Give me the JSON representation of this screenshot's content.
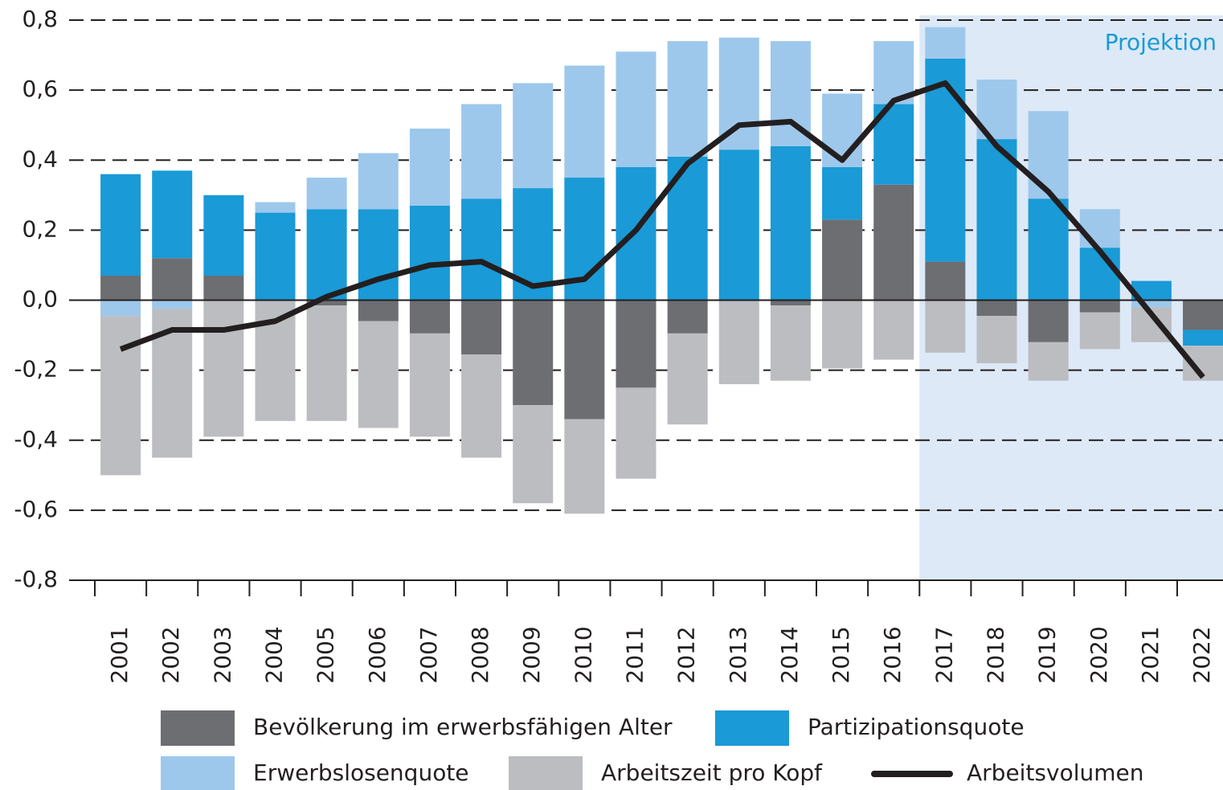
{
  "chart_data": {
    "type": "bar",
    "categories": [
      "2001",
      "2002",
      "2003",
      "2004",
      "2005",
      "2006",
      "2007",
      "2008",
      "2009",
      "2010",
      "2011",
      "2012",
      "2013",
      "2014",
      "2015",
      "2016",
      "2017",
      "2018",
      "2019",
      "2020",
      "2021",
      "2022"
    ],
    "series": [
      {
        "name": "Bevölkerung im erwerbsfähigen Alter",
        "color": "#6d6e71",
        "values": [
          0.07,
          0.12,
          0.07,
          0,
          -0.015,
          -0.06,
          -0.095,
          -0.155,
          -0.3,
          -0.34,
          -0.25,
          -0.095,
          0,
          -0.015,
          0.23,
          0.33,
          0.11,
          -0.045,
          -0.12,
          -0.035,
          0,
          -0.085
        ]
      },
      {
        "name": "Partizipationsquote",
        "color": "#1a9ad6",
        "values": [
          0.29,
          0.25,
          0.23,
          0.25,
          0.26,
          0.26,
          0.27,
          0.29,
          0.32,
          0.35,
          0.38,
          0.41,
          0.43,
          0.44,
          0.15,
          0.23,
          0.58,
          0.46,
          0.29,
          0.15,
          0.055,
          -0.045
        ]
      },
      {
        "name": "Erwerbslosenquote",
        "color": "#9dc8ec",
        "values": [
          -0.045,
          -0.025,
          0,
          0.03,
          0.09,
          0.16,
          0.22,
          0.27,
          0.3,
          0.32,
          0.33,
          0.33,
          0.32,
          0.3,
          0.21,
          0.18,
          0.09,
          0.17,
          0.25,
          0.11,
          -0.02,
          0
        ]
      },
      {
        "name": "Arbeitszeit pro Kopf",
        "color": "#bcbdc1",
        "values": [
          -0.455,
          -0.425,
          -0.39,
          -0.345,
          -0.33,
          -0.305,
          -0.295,
          -0.295,
          -0.28,
          -0.27,
          -0.26,
          -0.26,
          -0.24,
          -0.215,
          -0.195,
          -0.17,
          -0.15,
          -0.135,
          -0.11,
          -0.105,
          -0.1,
          -0.1
        ]
      }
    ],
    "line": {
      "name": "Arbeitsvolumen",
      "color": "#231f20",
      "values": [
        -0.14,
        -0.085,
        -0.085,
        -0.06,
        0.01,
        0.06,
        0.1,
        0.11,
        0.04,
        0.06,
        0.2,
        0.39,
        0.5,
        0.51,
        0.4,
        0.57,
        0.62,
        0.44,
        0.31,
        0.14,
        -0.04,
        -0.22
      ]
    },
    "annotation": "Projektion",
    "projection_from": "2017",
    "ylim": [
      -0.8,
      0.8
    ],
    "yticks": [
      {
        "value": -0.8,
        "label": "-0,8"
      },
      {
        "value": -0.6,
        "label": "-0,6"
      },
      {
        "value": -0.4,
        "label": "-0,4"
      },
      {
        "value": -0.2,
        "label": "-0,2"
      },
      {
        "value": 0,
        "label": "0,0"
      },
      {
        "value": 0.2,
        "label": "0,2"
      },
      {
        "value": 0.4,
        "label": "0,4"
      },
      {
        "value": 0.6,
        "label": "0,6"
      },
      {
        "value": 0.8,
        "label": "0,8"
      }
    ],
    "grid": true
  }
}
